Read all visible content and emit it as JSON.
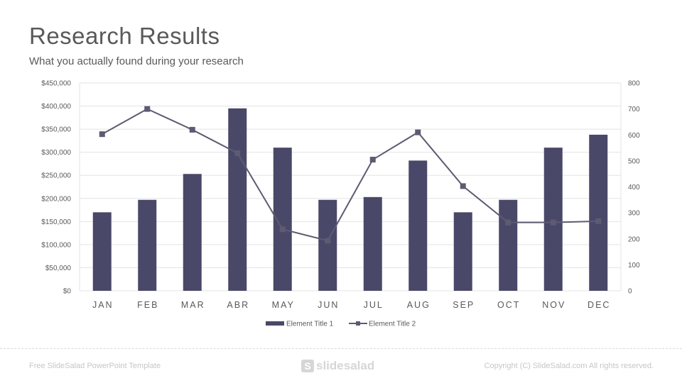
{
  "header": {
    "title": "Research Results",
    "subtitle": "What you actually found during your research"
  },
  "footer": {
    "left_text": "Free SlideSalad PowerPoint Template",
    "logo_text": "slidesalad",
    "right_text": "Copyright (C) SlideSalad.com  All rights reserved."
  },
  "colors": {
    "bar": "#4a4868",
    "line": "#5e5a72",
    "grid": "#e3e3e3",
    "text": "#595959"
  },
  "chart_data": {
    "type": "bar",
    "categories": [
      "JAN",
      "FEB",
      "MAR",
      "ABR",
      "MAY",
      "JUN",
      "JUL",
      "AUG",
      "SEP",
      "OCT",
      "NOV",
      "DEC"
    ],
    "series": [
      {
        "name": "Element Title 1",
        "type": "bar",
        "axis": "left",
        "values": [
          170000,
          197000,
          253000,
          395000,
          310000,
          197000,
          203000,
          282000,
          170000,
          197000,
          310000,
          338000
        ]
      },
      {
        "name": "Element Title 2",
        "type": "line",
        "axis": "right",
        "values": [
          603,
          700,
          620,
          530,
          237,
          193,
          505,
          610,
          403,
          263,
          263,
          268
        ]
      }
    ],
    "left_axis": {
      "ticks": [
        "$0",
        "$50,000",
        "$100,000",
        "$150,000",
        "$200,000",
        "$250,000",
        "$300,000",
        "$350,000",
        "$400,000",
        "$450,000"
      ],
      "ylim": [
        0,
        450000
      ]
    },
    "right_axis": {
      "ticks": [
        "0",
        "100",
        "200",
        "300",
        "400",
        "500",
        "600",
        "700",
        "800"
      ],
      "ylim": [
        0,
        800
      ]
    },
    "grid": true,
    "legend": "bottom"
  }
}
